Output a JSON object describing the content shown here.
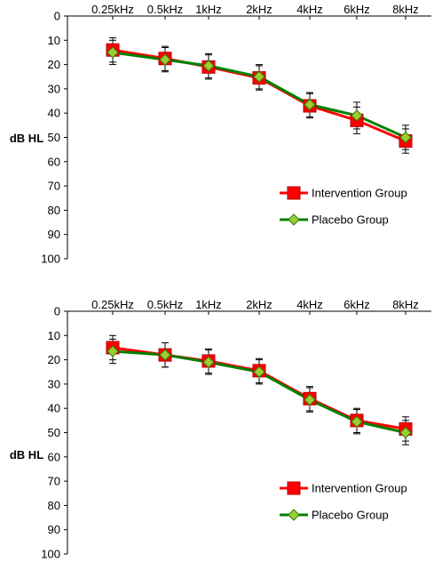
{
  "chart_data": [
    {
      "type": "line",
      "ylabel": "dB HL",
      "ylim": [
        0,
        100
      ],
      "y_inverted": true,
      "yticks": [
        "0",
        "10",
        "20",
        "30",
        "40",
        "50",
        "60",
        "70",
        "80",
        "90",
        "100"
      ],
      "categories": [
        "0.25kHz",
        "0.5kHz",
        "1kHz",
        "2kHz",
        "4kHz",
        "6kHz",
        "8kHz"
      ],
      "x_axis_position": "top",
      "grid": false,
      "legend_position": "bottom-right",
      "series": [
        {
          "name": "Intervention Group",
          "color": "#ff0000",
          "marker": "square",
          "values": [
            14,
            17.5,
            21,
            25.5,
            37,
            43,
            51.5
          ],
          "errors": [
            5,
            5,
            5,
            5,
            5,
            5.5,
            5
          ]
        },
        {
          "name": "Placebo Group",
          "color": "#008000",
          "marker": "diamond",
          "values": [
            15,
            18,
            20.5,
            25,
            36.5,
            41,
            50
          ],
          "errors": [
            5,
            5,
            5,
            5,
            5,
            5.5,
            5
          ]
        }
      ]
    },
    {
      "type": "line",
      "ylabel": "dB HL",
      "ylim": [
        0,
        100
      ],
      "y_inverted": true,
      "yticks": [
        "0",
        "10",
        "20",
        "30",
        "40",
        "50",
        "60",
        "70",
        "80",
        "90",
        "100"
      ],
      "categories": [
        "0.25kHz",
        "0.5kHz",
        "1kHz",
        "2kHz",
        "4kHz",
        "6kHz",
        "8kHz"
      ],
      "x_axis_position": "top",
      "grid": false,
      "legend_position": "bottom-right",
      "series": [
        {
          "name": "Intervention Group",
          "color": "#ff0000",
          "marker": "square",
          "values": [
            15,
            18,
            20.5,
            24.5,
            36,
            45,
            48.5
          ],
          "errors": [
            5,
            5,
            5,
            5,
            5,
            5,
            5
          ]
        },
        {
          "name": "Placebo Group",
          "color": "#008000",
          "marker": "diamond",
          "values": [
            16.5,
            18,
            21,
            25,
            36.5,
            45.5,
            50
          ],
          "errors": [
            5,
            5,
            5,
            5,
            5,
            5,
            5
          ]
        }
      ]
    }
  ]
}
